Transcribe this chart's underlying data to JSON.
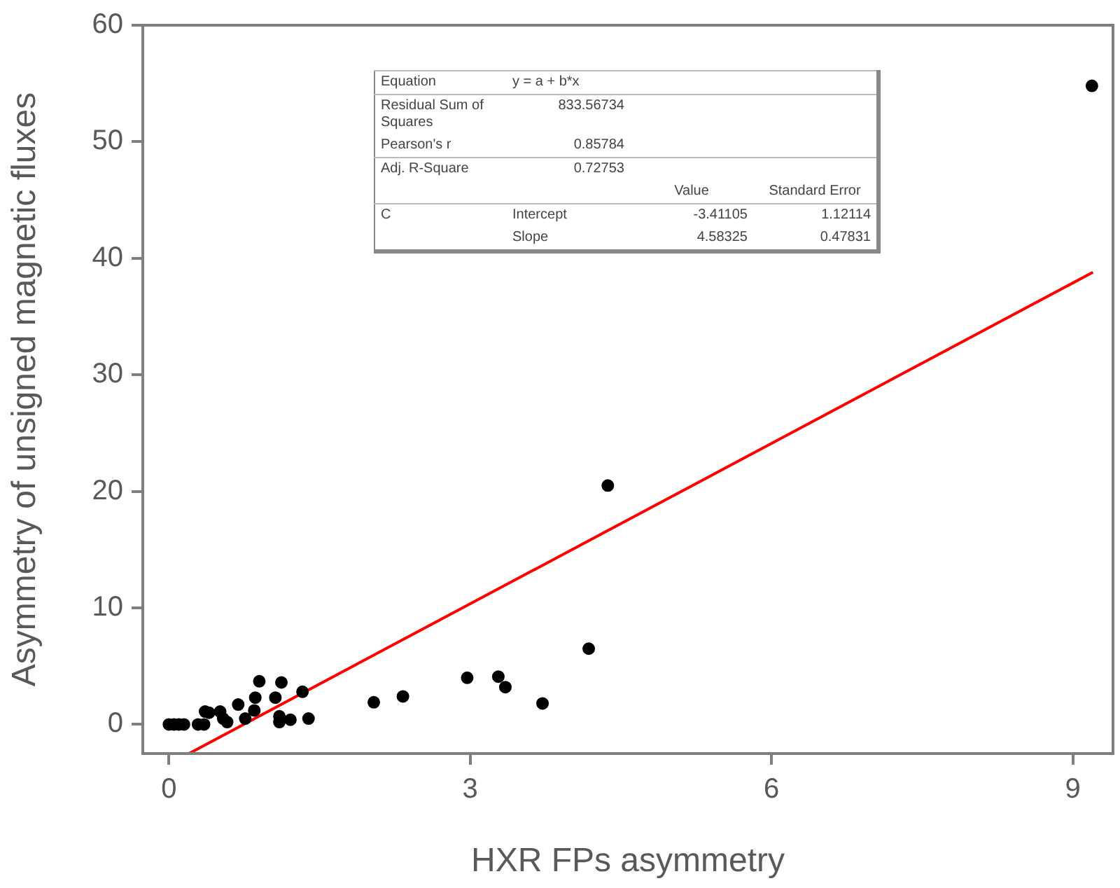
{
  "chart_data": {
    "type": "scatter",
    "xlabel": "HXR FPs asymmetry",
    "ylabel": "Asymmetry of unsigned magnetic fluxes",
    "xlim": [
      -0.26,
      9.4
    ],
    "xticks": [
      0,
      3,
      6,
      9
    ],
    "ylim": [
      -2.5,
      60
    ],
    "yticks": [
      0,
      10,
      20,
      30,
      40,
      50,
      60
    ],
    "grid": false,
    "legend": false,
    "marker": "circle",
    "series": [
      {
        "color": "#000000",
        "x": [
          0.0,
          0.05,
          0.1,
          0.15,
          0.29,
          0.35,
          0.36,
          0.4,
          0.51,
          0.54,
          0.58,
          0.69,
          0.76,
          0.85,
          0.86,
          0.9,
          1.06,
          1.1,
          1.1,
          1.12,
          1.21,
          1.33,
          1.39,
          2.04,
          2.33,
          2.97,
          3.28,
          3.35,
          3.72,
          4.18,
          4.37,
          9.19
        ],
        "values": [
          0,
          0,
          0,
          0,
          0,
          0,
          1.1,
          1.0,
          1.1,
          0.5,
          0.2,
          1.7,
          0.5,
          1.2,
          2.3,
          3.7,
          2.3,
          0.7,
          0.2,
          3.6,
          0.4,
          2.8,
          0.5,
          1.9,
          2.4,
          4.0,
          4.1,
          3.2,
          1.8,
          6.5,
          20.5,
          54.8
        ]
      },
      {
        "type": "line",
        "marker": "none",
        "color": "#ff0000",
        "x": [
          0.2,
          9.2
        ],
        "values": [
          -2.5,
          38.8
        ]
      }
    ],
    "annotations": [
      "Equation",
      "y = a + b*x",
      "Residual Sum of Squares",
      "833.56734",
      "Pearson's r",
      "0.85784",
      "Adj. R-Square",
      "0.72753",
      "Value",
      "Standard Error",
      "C",
      "Intercept",
      "-3.41105",
      "1.12114",
      "Slope",
      "4.58325",
      "0.47831"
    ]
  }
}
